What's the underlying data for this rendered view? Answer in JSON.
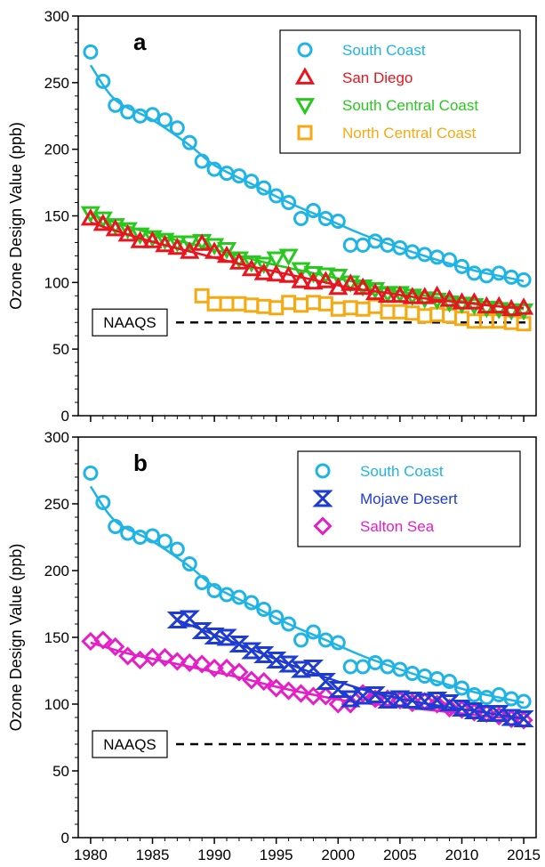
{
  "chart_data": [
    {
      "panel_label": "a",
      "type": "scatter",
      "ylabel": "Ozone Design Value (ppb)",
      "xlim": [
        1979,
        2016
      ],
      "ylim": [
        0,
        300
      ],
      "yticks": [
        0,
        50,
        100,
        150,
        200,
        250,
        300
      ],
      "xticks": [
        1980,
        1985,
        1990,
        1995,
        2000,
        2005,
        2010,
        2015
      ],
      "show_x_tick_labels": false,
      "grid": false,
      "legend_position": "top-right",
      "reference_line": {
        "label": "NAAQS",
        "value": 70
      },
      "series": [
        {
          "name": "South Coast",
          "marker": "circle",
          "color": "#1EB4E6",
          "x": [
            1980,
            1981,
            1982,
            1983,
            1984,
            1985,
            1986,
            1987,
            1988,
            1989,
            1990,
            1991,
            1992,
            1993,
            1994,
            1995,
            1996,
            1997,
            1998,
            1999,
            2000,
            2001,
            2002,
            2003,
            2004,
            2005,
            2006,
            2007,
            2008,
            2009,
            2010,
            2011,
            2012,
            2013,
            2014,
            2015
          ],
          "y": [
            273,
            251,
            233,
            228,
            225,
            226,
            222,
            216,
            205,
            191,
            185,
            182,
            180,
            176,
            171,
            165,
            160,
            148,
            154,
            148,
            146,
            128,
            128,
            131,
            128,
            126,
            123,
            121,
            119,
            117,
            112,
            107,
            105,
            107,
            104,
            102
          ],
          "fit": [
            [
              1980,
              263
            ],
            [
              1982,
              237
            ],
            [
              1985,
              222
            ],
            [
              1988,
              203
            ],
            [
              1990,
              188
            ],
            [
              1993,
              174
            ],
            [
              1996,
              160
            ],
            [
              1999,
              148
            ],
            [
              2002,
              136
            ],
            [
              2005,
              126
            ],
            [
              2008,
              117
            ],
            [
              2011,
              109
            ],
            [
              2013,
              105
            ],
            [
              2015,
              101
            ]
          ]
        },
        {
          "name": "San Diego",
          "marker": "triangle-up",
          "color": "#E8141E",
          "x": [
            1980,
            1981,
            1982,
            1983,
            1984,
            1985,
            1986,
            1987,
            1988,
            1989,
            1990,
            1991,
            1992,
            1993,
            1994,
            1995,
            1996,
            1997,
            1998,
            1999,
            2000,
            2001,
            2002,
            2003,
            2004,
            2005,
            2006,
            2007,
            2008,
            2009,
            2010,
            2011,
            2012,
            2013,
            2014,
            2015
          ],
          "y": [
            148,
            144,
            140,
            136,
            131,
            131,
            128,
            126,
            123,
            129,
            123,
            120,
            115,
            110,
            107,
            106,
            105,
            101,
            100,
            101,
            96,
            99,
            96,
            92,
            90,
            90,
            89,
            89,
            90,
            87,
            85,
            85,
            82,
            82,
            80,
            81
          ],
          "fit": [
            [
              1980,
              145
            ],
            [
              1983,
              136
            ],
            [
              1986,
              128
            ],
            [
              1989,
              121
            ],
            [
              1992,
              114
            ],
            [
              1995,
              108
            ],
            [
              1998,
              102
            ],
            [
              2001,
              96
            ],
            [
              2004,
              92
            ],
            [
              2007,
              88
            ],
            [
              2010,
              85
            ],
            [
              2013,
              82
            ],
            [
              2015,
              81
            ]
          ]
        },
        {
          "name": "South Central Coast",
          "marker": "triangle-down",
          "color": "#28C81E",
          "x": [
            1980,
            1981,
            1982,
            1983,
            1984,
            1985,
            1986,
            1987,
            1988,
            1989,
            1990,
            1991,
            1992,
            1993,
            1994,
            1995,
            1996,
            1997,
            1998,
            1999,
            2000,
            2001,
            2002,
            2003,
            2004,
            2005,
            2006,
            2007,
            2008,
            2009,
            2010,
            2011,
            2012,
            2013,
            2014,
            2015
          ],
          "y": [
            152,
            148,
            143,
            140,
            136,
            134,
            132,
            130,
            130,
            131,
            128,
            125,
            118,
            115,
            114,
            118,
            120,
            110,
            107,
            106,
            105,
            100,
            97,
            95,
            92,
            92,
            90,
            88,
            87,
            85,
            84,
            83,
            81,
            80,
            79,
            79
          ],
          "fit": [
            [
              1980,
              151
            ],
            [
              1983,
              142
            ],
            [
              1986,
              134
            ],
            [
              1989,
              127
            ],
            [
              1992,
              120
            ],
            [
              1995,
              113
            ],
            [
              1998,
              107
            ],
            [
              2001,
              101
            ],
            [
              2004,
              95
            ],
            [
              2007,
              90
            ],
            [
              2010,
              86
            ],
            [
              2013,
              82
            ],
            [
              2015,
              80
            ]
          ]
        },
        {
          "name": "North Central Coast",
          "marker": "square",
          "color": "#F5AA14",
          "x": [
            1989,
            1990,
            1991,
            1992,
            1993,
            1994,
            1995,
            1996,
            1997,
            1998,
            1999,
            2000,
            2001,
            2002,
            2003,
            2004,
            2005,
            2006,
            2007,
            2008,
            2009,
            2010,
            2011,
            2012,
            2013,
            2014,
            2015
          ],
          "y": [
            90,
            84,
            84,
            84,
            83,
            82,
            81,
            85,
            83,
            85,
            84,
            80,
            81,
            80,
            82,
            78,
            78,
            77,
            75,
            76,
            75,
            73,
            71,
            71,
            71,
            70,
            69
          ],
          "fit": []
        }
      ]
    },
    {
      "panel_label": "b",
      "type": "scatter",
      "ylabel": "Ozone Design Value (ppb)",
      "xlim": [
        1979,
        2016
      ],
      "ylim": [
        0,
        300
      ],
      "yticks": [
        0,
        50,
        100,
        150,
        200,
        250,
        300
      ],
      "xticks": [
        1980,
        1985,
        1990,
        1995,
        2000,
        2005,
        2010,
        2015
      ],
      "show_x_tick_labels": true,
      "grid": false,
      "legend_position": "top-right",
      "reference_line": {
        "label": "NAAQS",
        "value": 70
      },
      "series": [
        {
          "name": "South Coast",
          "marker": "circle",
          "color": "#1EB4E6",
          "x": [
            1980,
            1981,
            1982,
            1983,
            1984,
            1985,
            1986,
            1987,
            1988,
            1989,
            1990,
            1991,
            1992,
            1993,
            1994,
            1995,
            1996,
            1997,
            1998,
            1999,
            2000,
            2001,
            2002,
            2003,
            2004,
            2005,
            2006,
            2007,
            2008,
            2009,
            2010,
            2011,
            2012,
            2013,
            2014,
            2015
          ],
          "y": [
            273,
            251,
            233,
            228,
            225,
            226,
            222,
            216,
            205,
            191,
            185,
            182,
            180,
            176,
            171,
            165,
            160,
            148,
            154,
            148,
            146,
            128,
            128,
            131,
            128,
            126,
            123,
            121,
            119,
            117,
            112,
            107,
            105,
            107,
            104,
            102
          ],
          "fit": [
            [
              1980,
              263
            ],
            [
              1982,
              237
            ],
            [
              1985,
              222
            ],
            [
              1988,
              203
            ],
            [
              1990,
              188
            ],
            [
              1993,
              174
            ],
            [
              1996,
              160
            ],
            [
              1999,
              148
            ],
            [
              2002,
              136
            ],
            [
              2005,
              126
            ],
            [
              2008,
              117
            ],
            [
              2011,
              109
            ],
            [
              2013,
              105
            ],
            [
              2015,
              101
            ]
          ]
        },
        {
          "name": "Mojave Desert",
          "marker": "bowtie",
          "color": "#1E3CD2",
          "x": [
            1987,
            1988,
            1989,
            1990,
            1991,
            1992,
            1993,
            1994,
            1995,
            1996,
            1997,
            1998,
            1999,
            2000,
            2001,
            2002,
            2003,
            2004,
            2005,
            2006,
            2007,
            2008,
            2009,
            2010,
            2011,
            2012,
            2013,
            2014,
            2015
          ],
          "y": [
            163,
            164,
            155,
            151,
            150,
            145,
            140,
            137,
            133,
            130,
            126,
            127,
            117,
            111,
            104,
            106,
            107,
            103,
            104,
            103,
            102,
            103,
            101,
            97,
            95,
            93,
            93,
            90,
            89
          ],
          "fit": [
            [
              1987,
              163
            ],
            [
              1990,
              152
            ],
            [
              1993,
              141
            ],
            [
              1996,
              130
            ],
            [
              1999,
              120
            ],
            [
              2002,
              111
            ],
            [
              2005,
              104
            ],
            [
              2008,
              99
            ],
            [
              2011,
              95
            ],
            [
              2013,
              92
            ],
            [
              2015,
              89
            ]
          ]
        },
        {
          "name": "Salton Sea",
          "marker": "diamond",
          "color": "#E61EC8",
          "x": [
            1980,
            1981,
            1982,
            1983,
            1984,
            1985,
            1986,
            1987,
            1988,
            1989,
            1990,
            1991,
            1992,
            1993,
            1994,
            1995,
            1996,
            1997,
            1998,
            1999,
            2000,
            2001,
            2002,
            2003,
            2004,
            2005,
            2006,
            2007,
            2008,
            2009,
            2010,
            2011,
            2012,
            2013,
            2014,
            2015
          ],
          "y": [
            147,
            148,
            143,
            136,
            133,
            135,
            135,
            132,
            131,
            130,
            127,
            127,
            124,
            118,
            117,
            112,
            110,
            108,
            106,
            106,
            100,
            100,
            108,
            104,
            104,
            103,
            101,
            102,
            100,
            97,
            96,
            94,
            93,
            91,
            89,
            88
          ],
          "fit": [
            [
              1980,
              146
            ],
            [
              1983,
              138
            ],
            [
              1986,
              132
            ],
            [
              1989,
              126
            ],
            [
              1992,
              120
            ],
            [
              1995,
              113
            ],
            [
              1998,
              107
            ],
            [
              2001,
              102
            ],
            [
              2004,
              99
            ],
            [
              2007,
              96
            ],
            [
              2010,
              93
            ],
            [
              2013,
              90
            ],
            [
              2015,
              89
            ]
          ]
        }
      ]
    }
  ]
}
